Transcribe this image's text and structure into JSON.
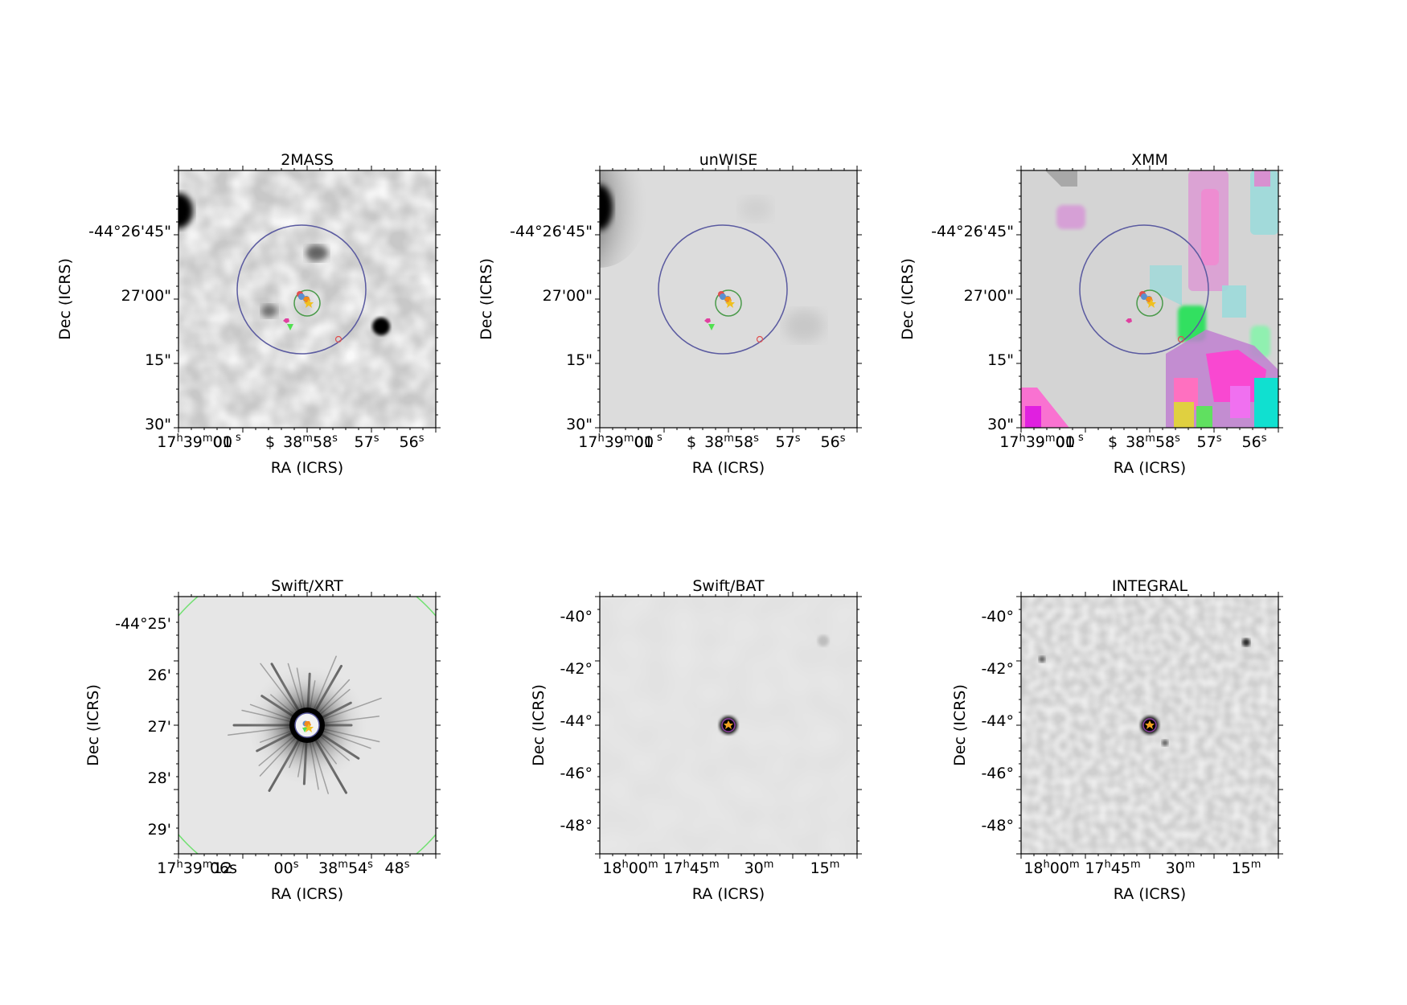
{
  "chart_data": [
    {
      "type": "sky_image",
      "title": "2MASS",
      "xlabel": "RA (ICRS)",
      "ylabel": "Dec (ICRS)",
      "colormap": "gray_r",
      "y_ticks": [
        "-44°26'45\"",
        "27'00\"",
        "15\"",
        "30\""
      ],
      "x_ticks": [
        {
          "h": "17",
          "m": "39",
          "s": "01",
          "tail": "00"
        },
        {
          "text": "$"
        },
        {
          "m": "38",
          "s": "58"
        },
        {
          "s": "57"
        },
        {
          "s": "56"
        }
      ]
    },
    {
      "type": "sky_image",
      "title": "unWISE",
      "xlabel": "RA (ICRS)",
      "ylabel": "Dec (ICRS)",
      "colormap": "gray_r",
      "y_ticks": [
        "-44°26'45\"",
        "27'00\"",
        "15\"",
        "30\""
      ],
      "x_ticks": [
        {
          "h": "17",
          "m": "39",
          "s": "01",
          "tail": "00"
        },
        {
          "text": "$"
        },
        {
          "m": "38",
          "s": "58"
        },
        {
          "s": "57"
        },
        {
          "s": "56"
        }
      ]
    },
    {
      "type": "sky_image",
      "title": "XMM",
      "xlabel": "RA (ICRS)",
      "ylabel": "Dec (ICRS)",
      "colormap": "multicolor",
      "y_ticks": [
        "-44°26'45\"",
        "27'00\"",
        "15\"",
        "30\""
      ],
      "x_ticks": [
        {
          "h": "17",
          "m": "39",
          "s": "01",
          "tail": "00"
        },
        {
          "text": "$"
        },
        {
          "m": "38",
          "s": "58"
        },
        {
          "s": "57"
        },
        {
          "s": "56"
        }
      ]
    },
    {
      "type": "sky_image",
      "title": "Swift/XRT",
      "xlabel": "RA (ICRS)",
      "ylabel": "Dec (ICRS)",
      "colormap": "gray_r",
      "y_ticks": [
        "-44°25'",
        "26'",
        "27'",
        "28'",
        "29'"
      ],
      "x_ticks": [
        {
          "h": "17",
          "m": "39",
          "s": "12",
          "tail": "06s"
        },
        {
          "s": "00"
        },
        {
          "m": "38",
          "s": "54"
        },
        {
          "s": "48"
        }
      ]
    },
    {
      "type": "sky_image",
      "title": "Swift/BAT",
      "xlabel": "RA (ICRS)",
      "ylabel": "Dec (ICRS)",
      "colormap": "gray_r",
      "y_ticks": [
        "-40°",
        "-42°",
        "-44°",
        "-46°",
        "-48°"
      ],
      "x_ticks": [
        {
          "h": "18",
          "m": "00"
        },
        {
          "h": "17",
          "m": "45"
        },
        {
          "m": "30"
        },
        {
          "m": "15"
        }
      ]
    },
    {
      "type": "sky_image",
      "title": "INTEGRAL",
      "xlabel": "RA (ICRS)",
      "ylabel": "Dec (ICRS)",
      "colormap": "gray_r",
      "y_ticks": [
        "-40°",
        "-42°",
        "-44°",
        "-46°",
        "-48°"
      ],
      "x_ticks": [
        {
          "h": "18",
          "m": "00"
        },
        {
          "h": "17",
          "m": "45"
        },
        {
          "m": "30"
        },
        {
          "m": "15"
        }
      ]
    }
  ],
  "colors": {
    "error_circle_large": "#5a5aa0",
    "error_circle_small": "#4a9a4a",
    "marker_orange": "#f08a1e",
    "marker_blue": "#5a8fd0",
    "marker_pink": "#e040a0",
    "marker_green": "#50e050",
    "marker_red": "#e05050",
    "xrt_fov_circle": "#70e070"
  }
}
